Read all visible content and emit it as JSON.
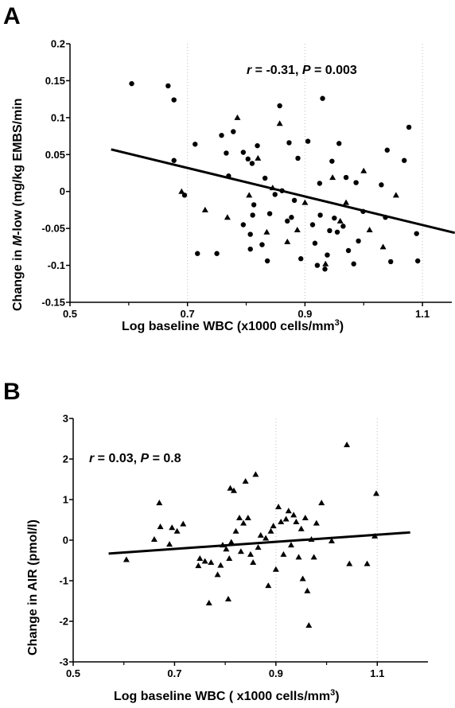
{
  "chart_data": [
    {
      "type": "scatter",
      "panel_label": "A",
      "annotation": {
        "r_label": "r",
        "r_text": " = -0.31, ",
        "p_label": "P",
        "p_text": " = 0.003"
      },
      "xlabel_pre": "Log baseline WBC  (x1000 cells/mm",
      "xlabel_sup": "3",
      "xlabel_post": ")",
      "ylabel_pre": "Change in ",
      "ylabel_italic": "M",
      "ylabel_post": "-low (mg/kg EMBS/min",
      "xlim": [
        0.5,
        1.15
      ],
      "ylim": [
        -0.15,
        0.2
      ],
      "x_ticks": [
        0.5,
        0.7,
        0.9,
        1.1
      ],
      "x_tick_labels": [
        "0.5",
        "0.7",
        "0.9",
        "1.1"
      ],
      "y_ticks": [
        0.2,
        0.15,
        0.1,
        0.05,
        0,
        -0.05,
        -0.1,
        -0.15
      ],
      "y_tick_labels": [
        "0.2",
        "0.15",
        "0.1",
        "0.05",
        "0",
        "-0.05",
        "-0.1",
        "-0.15"
      ],
      "regression_line": {
        "x": [
          0.57,
          1.155
        ],
        "y": [
          0.057,
          -0.056
        ]
      },
      "series": [
        {
          "marker": "circle",
          "points": [
            [
              0.605,
              0.146
            ],
            [
              0.667,
              0.143
            ],
            [
              0.677,
              0.124
            ],
            [
              0.677,
              0.042
            ],
            [
              0.695,
              -0.005
            ],
            [
              0.713,
              0.064
            ],
            [
              0.717,
              -0.084
            ],
            [
              0.75,
              -0.084
            ],
            [
              0.758,
              0.076
            ],
            [
              0.766,
              0.052
            ],
            [
              0.77,
              0.021
            ],
            [
              0.778,
              0.081
            ],
            [
              0.795,
              0.053
            ],
            [
              0.795,
              -0.045
            ],
            [
              0.803,
              0.044
            ],
            [
              0.807,
              -0.058
            ],
            [
              0.807,
              -0.078
            ],
            [
              0.81,
              0.038
            ],
            [
              0.811,
              -0.032
            ],
            [
              0.813,
              -0.018
            ],
            [
              0.819,
              0.062
            ],
            [
              0.827,
              -0.072
            ],
            [
              0.832,
              0.018
            ],
            [
              0.836,
              -0.094
            ],
            [
              0.84,
              -0.03
            ],
            [
              0.849,
              -0.004
            ],
            [
              0.857,
              0.116
            ],
            [
              0.861,
              0.001
            ],
            [
              0.87,
              -0.04
            ],
            [
              0.873,
              0.066
            ],
            [
              0.877,
              -0.035
            ],
            [
              0.882,
              -0.012
            ],
            [
              0.888,
              0.045
            ],
            [
              0.893,
              -0.091
            ],
            [
              0.905,
              0.068
            ],
            [
              0.913,
              -0.045
            ],
            [
              0.917,
              -0.07
            ],
            [
              0.921,
              -0.1
            ],
            [
              0.925,
              0.011
            ],
            [
              0.926,
              -0.032
            ],
            [
              0.93,
              0.126
            ],
            [
              0.934,
              -0.105
            ],
            [
              0.938,
              -0.086
            ],
            [
              0.942,
              -0.053
            ],
            [
              0.946,
              0.041
            ],
            [
              0.95,
              -0.036
            ],
            [
              0.955,
              -0.055
            ],
            [
              0.958,
              0.065
            ],
            [
              0.965,
              -0.047
            ],
            [
              0.97,
              0.019
            ],
            [
              0.974,
              -0.08
            ],
            [
              0.983,
              -0.098
            ],
            [
              0.987,
              0.012
            ],
            [
              0.991,
              -0.067
            ],
            [
              0.999,
              -0.027
            ],
            [
              1.03,
              0.009
            ],
            [
              1.037,
              -0.035
            ],
            [
              1.04,
              0.056
            ],
            [
              1.046,
              -0.095
            ],
            [
              1.069,
              0.042
            ],
            [
              1.077,
              0.087
            ],
            [
              1.09,
              -0.057
            ],
            [
              1.092,
              -0.094
            ]
          ]
        },
        {
          "marker": "triangle",
          "points": [
            [
              0.69,
              0.0
            ],
            [
              0.73,
              -0.025
            ],
            [
              0.768,
              -0.035
            ],
            [
              0.785,
              0.1
            ],
            [
              0.805,
              -0.005
            ],
            [
              0.82,
              0.045
            ],
            [
              0.835,
              -0.055
            ],
            [
              0.845,
              0.005
            ],
            [
              0.857,
              0.092
            ],
            [
              0.87,
              -0.068
            ],
            [
              0.887,
              -0.052
            ],
            [
              0.9,
              -0.015
            ],
            [
              0.935,
              -0.098
            ],
            [
              0.947,
              0.019
            ],
            [
              0.96,
              -0.04
            ],
            [
              0.97,
              -0.015
            ],
            [
              1.0,
              0.028
            ],
            [
              1.01,
              -0.052
            ],
            [
              1.033,
              -0.075
            ],
            [
              1.055,
              -0.005
            ]
          ]
        }
      ]
    },
    {
      "type": "scatter",
      "panel_label": "B",
      "annotation": {
        "r_label": "r",
        "r_text": " = 0.03, ",
        "p_label": "P",
        "p_text": " = 0.8"
      },
      "xlabel_pre": "Log baseline WBC ( x1000 cells/mm",
      "xlabel_sup": "3",
      "xlabel_post": ")",
      "ylabel_pre": "Change in AIR (pmol/l)",
      "ylabel_italic": "",
      "ylabel_post": "",
      "xlim": [
        0.5,
        1.2
      ],
      "ylim": [
        -3,
        3
      ],
      "x_ticks": [
        0.5,
        0.7,
        0.9,
        1.1
      ],
      "x_tick_labels": [
        "0.5",
        "0.7",
        "0.9",
        "1.1"
      ],
      "y_ticks": [
        3,
        2,
        1,
        0,
        -1,
        -2,
        -3
      ],
      "y_tick_labels": [
        "3",
        "2",
        "1",
        "0",
        "-1",
        "-2",
        "-3"
      ],
      "regression_line": {
        "x": [
          0.57,
          1.165
        ],
        "y": [
          -0.33,
          0.19
        ]
      },
      "series": [
        {
          "marker": "triangle",
          "points": [
            [
              0.605,
              -0.48
            ],
            [
              0.66,
              0.02
            ],
            [
              0.67,
              0.92
            ],
            [
              0.672,
              0.33
            ],
            [
              0.69,
              -0.1
            ],
            [
              0.695,
              0.31
            ],
            [
              0.705,
              0.22
            ],
            [
              0.717,
              0.4
            ],
            [
              0.747,
              -0.63
            ],
            [
              0.75,
              -0.45
            ],
            [
              0.76,
              -0.52
            ],
            [
              0.768,
              -1.55
            ],
            [
              0.772,
              -0.55
            ],
            [
              0.785,
              -0.85
            ],
            [
              0.791,
              -0.62
            ],
            [
              0.795,
              -0.12
            ],
            [
              0.802,
              -0.22
            ],
            [
              0.806,
              -1.45
            ],
            [
              0.808,
              -0.45
            ],
            [
              0.81,
              1.28
            ],
            [
              0.812,
              -0.05
            ],
            [
              0.817,
              1.22
            ],
            [
              0.821,
              0.22
            ],
            [
              0.828,
              0.55
            ],
            [
              0.831,
              -0.28
            ],
            [
              0.836,
              0.42
            ],
            [
              0.84,
              1.45
            ],
            [
              0.845,
              0.55
            ],
            [
              0.85,
              -0.35
            ],
            [
              0.855,
              -0.55
            ],
            [
              0.86,
              1.62
            ],
            [
              0.865,
              -0.18
            ],
            [
              0.87,
              0.12
            ],
            [
              0.88,
              0.05
            ],
            [
              0.885,
              -1.12
            ],
            [
              0.89,
              0.22
            ],
            [
              0.895,
              0.35
            ],
            [
              0.9,
              -0.72
            ],
            [
              0.905,
              0.82
            ],
            [
              0.91,
              0.45
            ],
            [
              0.915,
              -0.35
            ],
            [
              0.92,
              0.52
            ],
            [
              0.925,
              0.72
            ],
            [
              0.93,
              -0.12
            ],
            [
              0.935,
              0.62
            ],
            [
              0.94,
              0.45
            ],
            [
              0.945,
              -0.42
            ],
            [
              0.95,
              0.28
            ],
            [
              0.953,
              -0.95
            ],
            [
              0.958,
              0.55
            ],
            [
              0.962,
              -1.25
            ],
            [
              0.965,
              -2.1
            ],
            [
              0.97,
              0.02
            ],
            [
              0.975,
              -0.42
            ],
            [
              0.98,
              0.42
            ],
            [
              0.99,
              0.92
            ],
            [
              1.01,
              -0.02
            ],
            [
              1.04,
              2.35
            ],
            [
              1.045,
              -0.58
            ],
            [
              1.08,
              -0.58
            ],
            [
              1.095,
              0.1
            ],
            [
              1.098,
              1.15
            ]
          ]
        }
      ]
    }
  ]
}
